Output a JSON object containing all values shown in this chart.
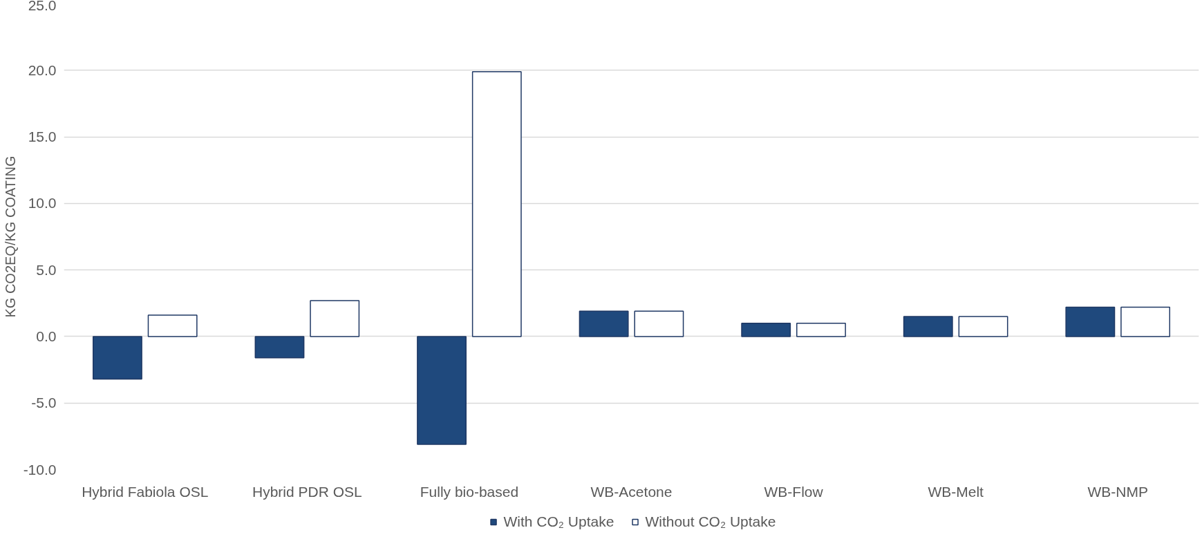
{
  "chart_data": {
    "type": "bar",
    "ylabel": "KG CO2EQ/KG COATING",
    "categories": [
      "Hybrid Fabiola OSL",
      "Hybrid PDR OSL",
      "Fully bio-based",
      "WB-Acetone",
      "WB-Flow",
      "WB-Melt",
      "WB-NMP"
    ],
    "series": [
      {
        "name": "With CO₂ Uptake",
        "color": "#1f497d",
        "values": [
          -3.2,
          -1.6,
          -8.1,
          1.9,
          1.0,
          1.5,
          2.2
        ]
      },
      {
        "name": "Without CO₂ Uptake",
        "color": "#ffffff",
        "values": [
          1.6,
          2.7,
          19.9,
          1.9,
          1.0,
          1.5,
          2.2
        ]
      }
    ],
    "ylim": [
      -10,
      25
    ],
    "yticks": [
      {
        "value": -10,
        "label": "-10.0"
      },
      {
        "value": -5,
        "label": "-5.0"
      },
      {
        "value": 0,
        "label": "0.0"
      },
      {
        "value": 5,
        "label": "5.0"
      },
      {
        "value": 10,
        "label": "10.0"
      },
      {
        "value": 15,
        "label": "15.0"
      },
      {
        "value": 20,
        "label": "20.0"
      },
      {
        "value": 25,
        "label": "25.0"
      }
    ],
    "grid": "y",
    "legend": "bottom"
  }
}
